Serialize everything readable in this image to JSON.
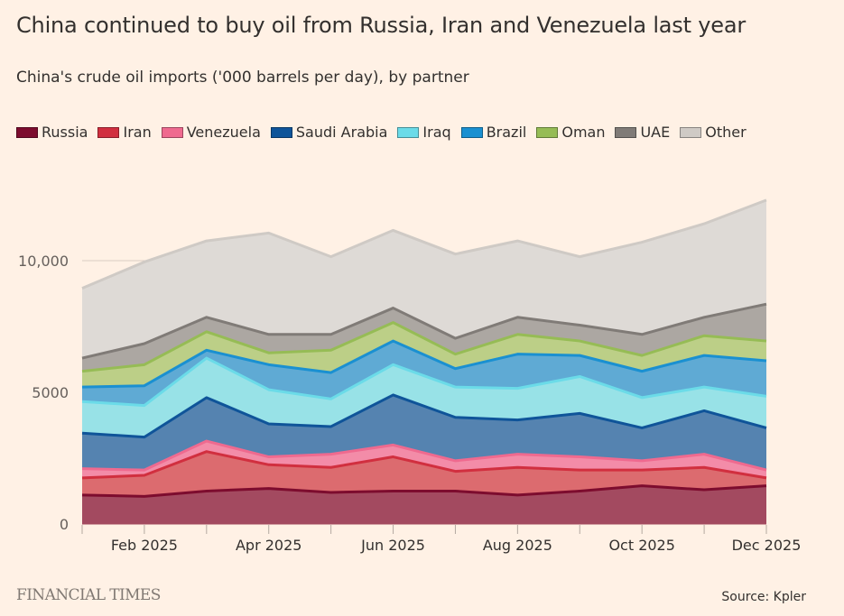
{
  "title": "China continued to buy oil from Russia, Iran and Venezuela last year",
  "subtitle": "China's crude oil imports ('000 barrels per day), by partner",
  "footer": {
    "brand": "FINANCIAL TIMES",
    "source": "Source: Kpler"
  },
  "legend": [
    {
      "name": "Russia",
      "color": "#7d0c2e"
    },
    {
      "name": "Iran",
      "color": "#d12f3f"
    },
    {
      "name": "Venezuela",
      "color": "#ef6a8f"
    },
    {
      "name": "Saudi Arabia",
      "color": "#0f5499"
    },
    {
      "name": "Iraq",
      "color": "#6bdbe8"
    },
    {
      "name": "Brazil",
      "color": "#1a90d1"
    },
    {
      "name": "Oman",
      "color": "#96bc55"
    },
    {
      "name": "UAE",
      "color": "#807b77"
    },
    {
      "name": "Other",
      "color": "#cfcac5"
    }
  ],
  "chart_data": {
    "type": "area",
    "stacked": true,
    "title": "China continued to buy oil from Russia, Iran and Venezuela last year",
    "subtitle": "China's crude oil imports ('000 barrels per day), by partner",
    "xlabel": "",
    "ylabel": "'000 barrels per day",
    "x": [
      "Jan 2025",
      "Feb 2025",
      "Mar 2025",
      "Apr 2025",
      "May 2025",
      "Jun 2025",
      "Jul 2025",
      "Aug 2025",
      "Sep 2025",
      "Oct 2025",
      "Nov 2025",
      "Dec 2025"
    ],
    "x_tick_labels": [
      "Feb 2025",
      "Apr 2025",
      "Jun 2025",
      "Aug 2025",
      "Oct 2025",
      "Dec 2025"
    ],
    "x_tick_label_indices": [
      1,
      3,
      5,
      7,
      9,
      11
    ],
    "y_ticks": [
      0,
      5000,
      10000
    ],
    "y_tick_labels": [
      "0",
      "5000",
      "10,000"
    ],
    "ylim": [
      0,
      12500
    ],
    "grid": true,
    "legend_position": "top-left",
    "series": [
      {
        "name": "Russia",
        "fill": "#a34a60",
        "line": "#7d0c2e",
        "values": [
          1100,
          1050,
          1250,
          1350,
          1200,
          1250,
          1250,
          1100,
          1250,
          1450,
          1300,
          1450
        ]
      },
      {
        "name": "Iran",
        "fill": "#dc6b6f",
        "line": "#d12f3f",
        "values": [
          650,
          800,
          1500,
          900,
          950,
          1300,
          750,
          1050,
          800,
          600,
          850,
          300
        ]
      },
      {
        "name": "Venezuela",
        "fill": "#f38ca8",
        "line": "#ef6a8f",
        "values": [
          350,
          200,
          400,
          300,
          500,
          450,
          400,
          500,
          500,
          350,
          500,
          300
        ]
      },
      {
        "name": "Saudi Arabia",
        "fill": "#5583b0",
        "line": "#0f5499",
        "values": [
          1350,
          1250,
          1650,
          1250,
          1050,
          1900,
          1650,
          1300,
          1650,
          1250,
          1650,
          1600
        ]
      },
      {
        "name": "Iraq",
        "fill": "#98e2e7",
        "line": "#6bdbe8",
        "values": [
          1200,
          1200,
          1500,
          1300,
          1050,
          1150,
          1150,
          1200,
          1400,
          1150,
          900,
          1200
        ]
      },
      {
        "name": "Brazil",
        "fill": "#5faad4",
        "line": "#1a90d1",
        "values": [
          550,
          750,
          300,
          950,
          1000,
          900,
          700,
          1300,
          800,
          1000,
          1200,
          1350
        ]
      },
      {
        "name": "Oman",
        "fill": "#bccf87",
        "line": "#96bc55",
        "values": [
          600,
          800,
          700,
          450,
          850,
          700,
          550,
          750,
          550,
          600,
          750,
          750
        ]
      },
      {
        "name": "UAE",
        "fill": "#aca7a2",
        "line": "#807b77",
        "values": [
          500,
          800,
          550,
          700,
          600,
          550,
          600,
          650,
          600,
          800,
          700,
          1400
        ]
      },
      {
        "name": "Other",
        "fill": "#dedad6",
        "line": "#cfcac5",
        "values": [
          2650,
          3100,
          2900,
          3850,
          2950,
          2950,
          3200,
          2900,
          2600,
          3500,
          3550,
          3950
        ]
      }
    ]
  }
}
